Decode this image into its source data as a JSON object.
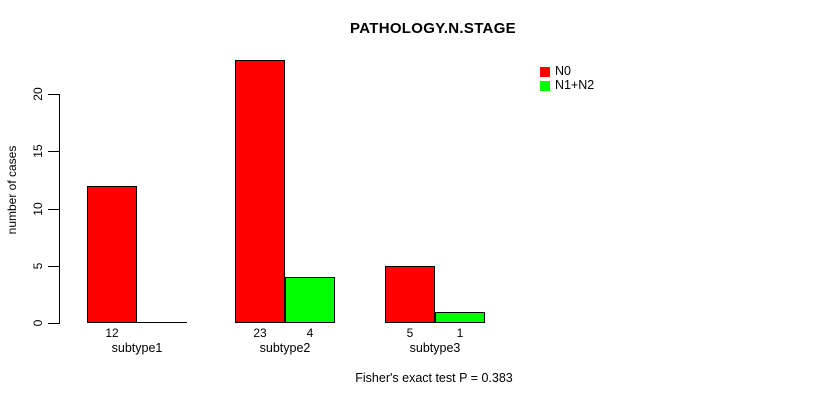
{
  "figure": {
    "title": "PATHOLOGY.N.STAGE",
    "annotation": "Fisher's exact test P = 0.383"
  },
  "chart_data": {
    "type": "bar",
    "title": "PATHOLOGY.N.STAGE",
    "xlabel": "",
    "ylabel": "number of cases",
    "categories": [
      "subtype1",
      "subtype2",
      "subtype3"
    ],
    "series": [
      {
        "name": "N0",
        "color": "#ff0000",
        "values": [
          12,
          23,
          5
        ]
      },
      {
        "name": "N1+N2",
        "color": "#00ff00",
        "values": [
          0,
          4,
          1
        ]
      }
    ],
    "bar_value_labels": [
      [
        "12",
        null
      ],
      [
        "23",
        "4"
      ],
      [
        "5",
        "1"
      ]
    ],
    "yticks": [
      0,
      5,
      10,
      15,
      20
    ],
    "ylim": [
      0,
      23
    ],
    "grid": false,
    "legend_position": "top-right",
    "legend_border": false,
    "annotation": "Fisher's exact test P = 0.383",
    "axis_color": "#000000",
    "bar_border_color": "#000000",
    "background_color": "#ffffff"
  }
}
